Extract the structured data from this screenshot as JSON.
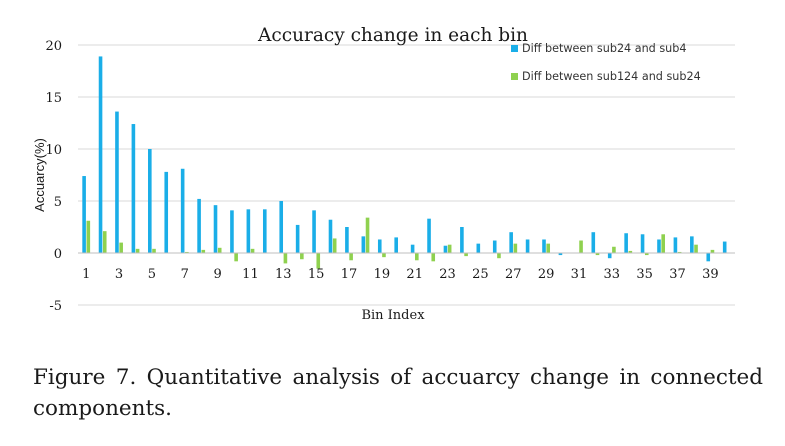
{
  "chart_data": {
    "type": "bar",
    "title": "Accuracy change in each bin",
    "xlabel": "Bin Index",
    "ylabel": "Accuarcy(%)",
    "ylim": [
      -5,
      20
    ],
    "yticks": [
      "-5",
      "0",
      "5",
      "10",
      "15",
      "20"
    ],
    "grid": true,
    "legend_position": "top-right",
    "categories": [
      "1",
      "2",
      "3",
      "4",
      "5",
      "6",
      "7",
      "8",
      "9",
      "10",
      "11",
      "12",
      "13",
      "14",
      "15",
      "16",
      "17",
      "18",
      "19",
      "20",
      "21",
      "22",
      "23",
      "24",
      "25",
      "26",
      "27",
      "28",
      "29",
      "30",
      "31",
      "32",
      "33",
      "34",
      "35",
      "36",
      "37",
      "38",
      "39",
      "40"
    ],
    "xtick_labels": [
      "1",
      "3",
      "5",
      "7",
      "9",
      "11",
      "13",
      "15",
      "17",
      "19",
      "21",
      "23",
      "25",
      "27",
      "29",
      "31",
      "33",
      "35",
      "37",
      "39"
    ],
    "series": [
      {
        "name": "Diff between sub24 and sub4",
        "color": "#1aaee8",
        "values": [
          7.4,
          18.9,
          13.6,
          12.4,
          10.0,
          7.8,
          8.1,
          5.2,
          4.6,
          4.1,
          4.2,
          4.2,
          5.0,
          2.7,
          4.1,
          3.2,
          2.5,
          1.6,
          1.3,
          1.5,
          0.8,
          3.3,
          0.7,
          2.5,
          0.9,
          1.2,
          2.0,
          1.3,
          1.3,
          -0.2,
          0.0,
          2.0,
          -0.5,
          1.9,
          1.8,
          1.3,
          1.5,
          1.6,
          -0.8,
          1.1
        ]
      },
      {
        "name": "Diff between sub124 and sub24",
        "color": "#8fd14f",
        "values": [
          3.1,
          2.1,
          1.0,
          0.4,
          0.4,
          0.0,
          0.1,
          0.3,
          0.5,
          -0.8,
          0.4,
          0.0,
          -1.0,
          -0.6,
          -1.5,
          1.4,
          -0.7,
          3.4,
          -0.4,
          0.0,
          -0.7,
          -0.8,
          0.8,
          -0.3,
          0.0,
          -0.5,
          0.9,
          0.0,
          0.9,
          0.0,
          1.2,
          -0.2,
          0.6,
          0.2,
          -0.2,
          1.8,
          0.1,
          0.8,
          0.3,
          0.0
        ]
      }
    ]
  },
  "caption": "Figure 7. Quantitative analysis of accuarcy change in connected components."
}
